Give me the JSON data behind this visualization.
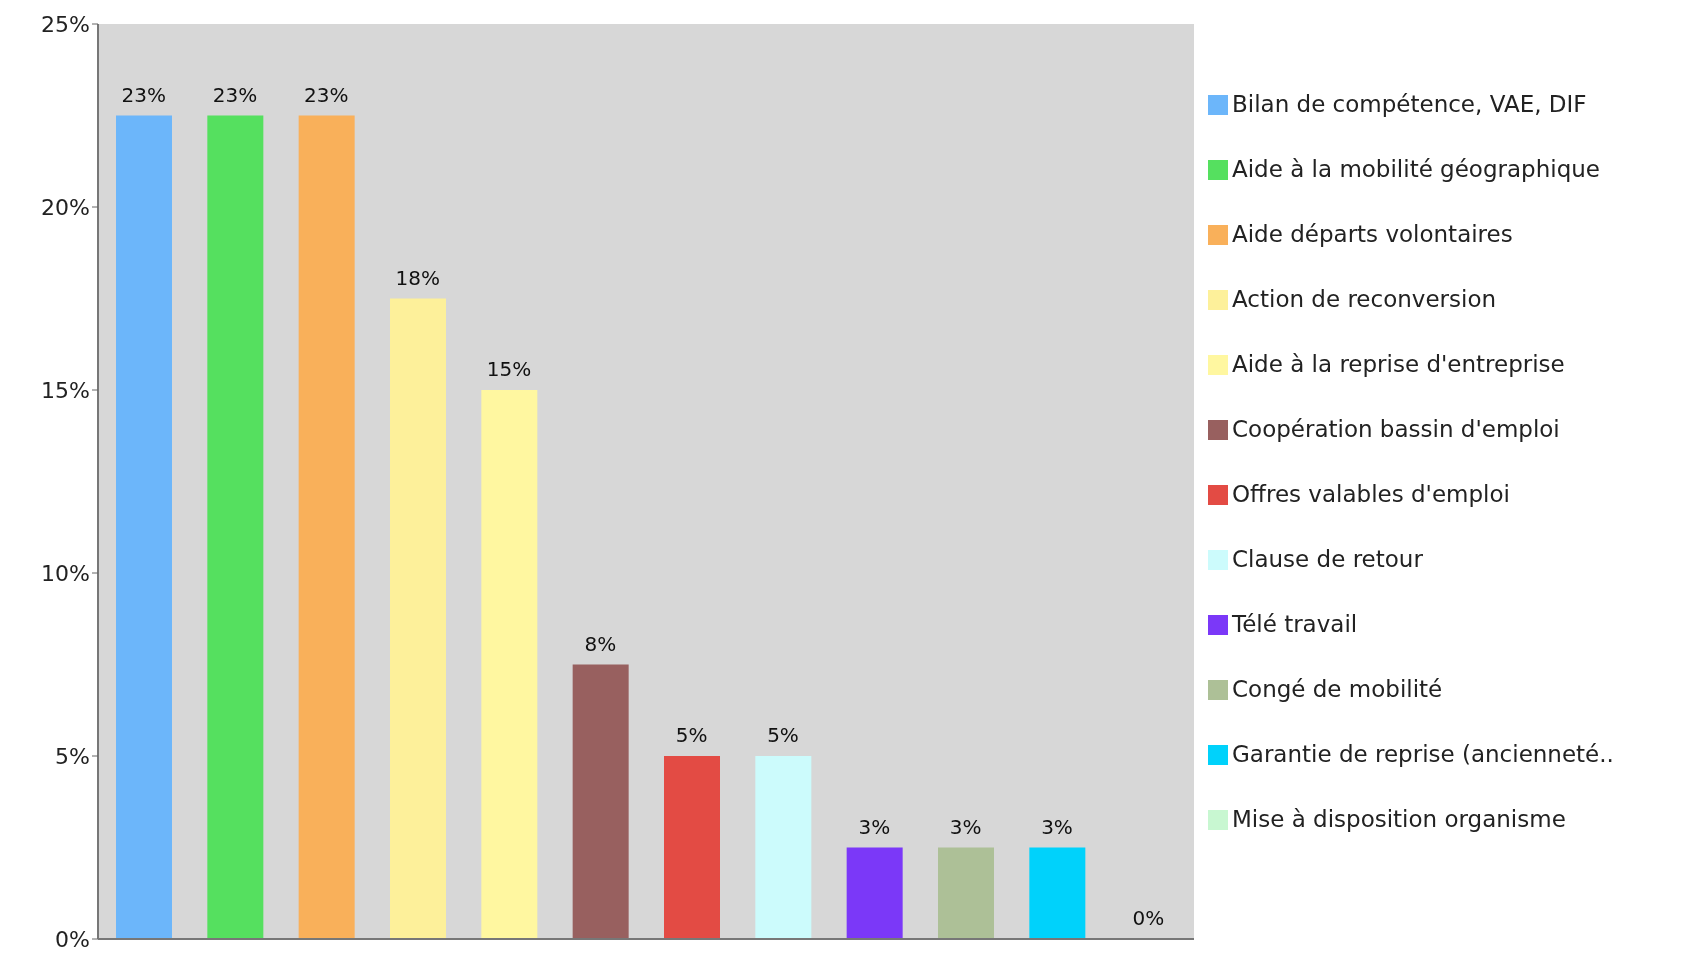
{
  "chart_data": {
    "type": "bar",
    "stacked": true,
    "categories": [
      null,
      null,
      null,
      null,
      null,
      null,
      null,
      null,
      null,
      null,
      null,
      null
    ],
    "series": [
      {
        "name": "Bilan de compétence, VAE, DIF",
        "color": "#6cb6fa",
        "values": [
          22.5,
          null,
          null,
          null,
          null,
          null,
          null,
          null,
          null,
          null,
          null,
          null
        ],
        "value_labels": [
          "23%",
          null,
          null,
          null,
          null,
          null,
          null,
          null,
          null,
          null,
          null,
          null
        ]
      },
      {
        "name": "Aide à la mobilité géographique",
        "color": "#55e05f",
        "values": [
          null,
          22.5,
          null,
          null,
          null,
          null,
          null,
          null,
          null,
          null,
          null,
          null
        ],
        "value_labels": [
          null,
          "23%",
          null,
          null,
          null,
          null,
          null,
          null,
          null,
          null,
          null,
          null
        ]
      },
      {
        "name": "Aide départs volontaires",
        "color": "#f9b05a",
        "values": [
          null,
          null,
          22.5,
          null,
          null,
          null,
          null,
          null,
          null,
          null,
          null,
          null
        ],
        "value_labels": [
          null,
          null,
          "23%",
          null,
          null,
          null,
          null,
          null,
          null,
          null,
          null,
          null
        ]
      },
      {
        "name": "Action de reconversion",
        "color": "#fdf09a",
        "values": [
          null,
          null,
          null,
          17.5,
          null,
          null,
          null,
          null,
          null,
          null,
          null,
          null
        ],
        "value_labels": [
          null,
          null,
          null,
          "18%",
          null,
          null,
          null,
          null,
          null,
          null,
          null,
          null
        ]
      },
      {
        "name": "Aide à la reprise d'entreprise",
        "color": "#fff7a0",
        "values": [
          null,
          null,
          null,
          null,
          15,
          null,
          null,
          null,
          null,
          null,
          null,
          null
        ],
        "value_labels": [
          null,
          null,
          null,
          null,
          "15%",
          null,
          null,
          null,
          null,
          null,
          null,
          null
        ]
      },
      {
        "name": "Coopération bassin d'emploi",
        "color": "#98605f",
        "values": [
          null,
          null,
          null,
          null,
          null,
          7.5,
          null,
          null,
          null,
          null,
          null,
          null
        ],
        "value_labels": [
          null,
          null,
          null,
          null,
          null,
          "8%",
          null,
          null,
          null,
          null,
          null,
          null
        ]
      },
      {
        "name": "Offres valables d'emploi",
        "color": "#e34b44",
        "values": [
          null,
          null,
          null,
          null,
          null,
          null,
          5,
          null,
          null,
          null,
          null,
          null
        ],
        "value_labels": [
          null,
          null,
          null,
          null,
          null,
          null,
          "5%",
          null,
          null,
          null,
          null,
          null
        ]
      },
      {
        "name": "Clause de retour",
        "color": "#ccfbfc",
        "values": [
          null,
          null,
          null,
          null,
          null,
          null,
          null,
          5,
          null,
          null,
          null,
          null
        ],
        "value_labels": [
          null,
          null,
          null,
          null,
          null,
          null,
          null,
          "5%",
          null,
          null,
          null,
          null
        ]
      },
      {
        "name": "Télé travail",
        "color": "#7b38f8",
        "values": [
          null,
          null,
          null,
          null,
          null,
          null,
          null,
          null,
          2.5,
          null,
          null,
          null
        ],
        "value_labels": [
          null,
          null,
          null,
          null,
          null,
          null,
          null,
          null,
          "3%",
          null,
          null,
          null
        ]
      },
      {
        "name": "Congé de mobilité",
        "color": "#adc097",
        "values": [
          null,
          null,
          null,
          null,
          null,
          null,
          null,
          null,
          null,
          2.5,
          null,
          null
        ],
        "value_labels": [
          null,
          null,
          null,
          null,
          null,
          null,
          null,
          null,
          null,
          "3%",
          null,
          null
        ]
      },
      {
        "name": "Garantie de reprise (ancienneté..",
        "color": "#00d2fb",
        "values": [
          null,
          null,
          null,
          null,
          null,
          null,
          null,
          null,
          null,
          null,
          2.5,
          null
        ],
        "value_labels": [
          null,
          null,
          null,
          null,
          null,
          null,
          null,
          null,
          null,
          null,
          "3%",
          null
        ]
      },
      {
        "name": "Mise à disposition organisme",
        "color": "#c8f7d1",
        "values": [
          null,
          null,
          null,
          null,
          null,
          null,
          null,
          null,
          null,
          null,
          null,
          0
        ],
        "value_labels": [
          null,
          null,
          null,
          null,
          null,
          null,
          null,
          null,
          null,
          null,
          null,
          "0%"
        ]
      }
    ],
    "ylim": [
      0,
      25
    ],
    "yticks": [
      {
        "value": 0,
        "label": "0%"
      },
      {
        "value": 5,
        "label": "5%"
      },
      {
        "value": 10,
        "label": "10%"
      },
      {
        "value": 15,
        "label": "15%"
      },
      {
        "value": 20,
        "label": "20%"
      },
      {
        "value": 25,
        "label": "25%"
      }
    ],
    "tick_labels": "y",
    "legend": "right",
    "grid": false
  }
}
